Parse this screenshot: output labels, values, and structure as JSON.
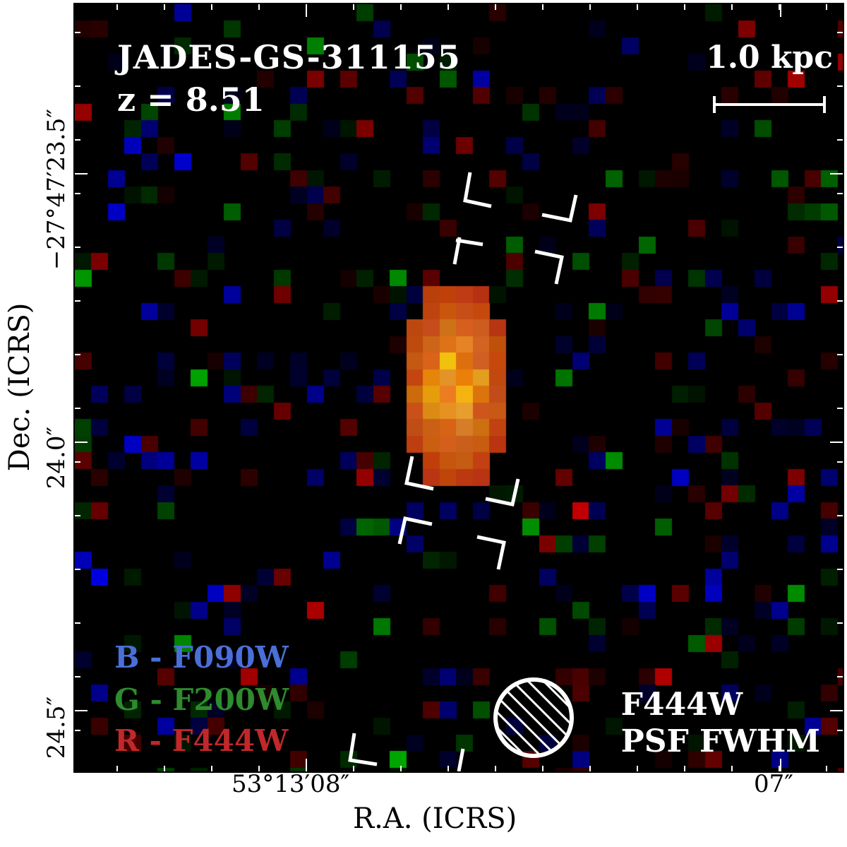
{
  "figure": {
    "title": "JADES-GS-311155",
    "redshift": "z = 8.51",
    "scale_bar_label": "1.0 kpc",
    "psf_label_line1": "F444W",
    "psf_label_line2": "PSF FWHM",
    "legend": [
      {
        "text": "B - F090W",
        "color": "#4a6fd8"
      },
      {
        "text": "G - F200W",
        "color": "#2e8b2e"
      },
      {
        "text": "R - F444W",
        "color": "#c0282a"
      }
    ],
    "xlabel": "R.A. (ICRS)",
    "ylabel": "Dec. (ICRS)",
    "x_ticks": [
      "53°13′08″",
      "07″"
    ],
    "y_ticks": [
      "−27°47′23.5″",
      "24.0″",
      "24.5″"
    ],
    "marker_color": "#ffffff"
  }
}
